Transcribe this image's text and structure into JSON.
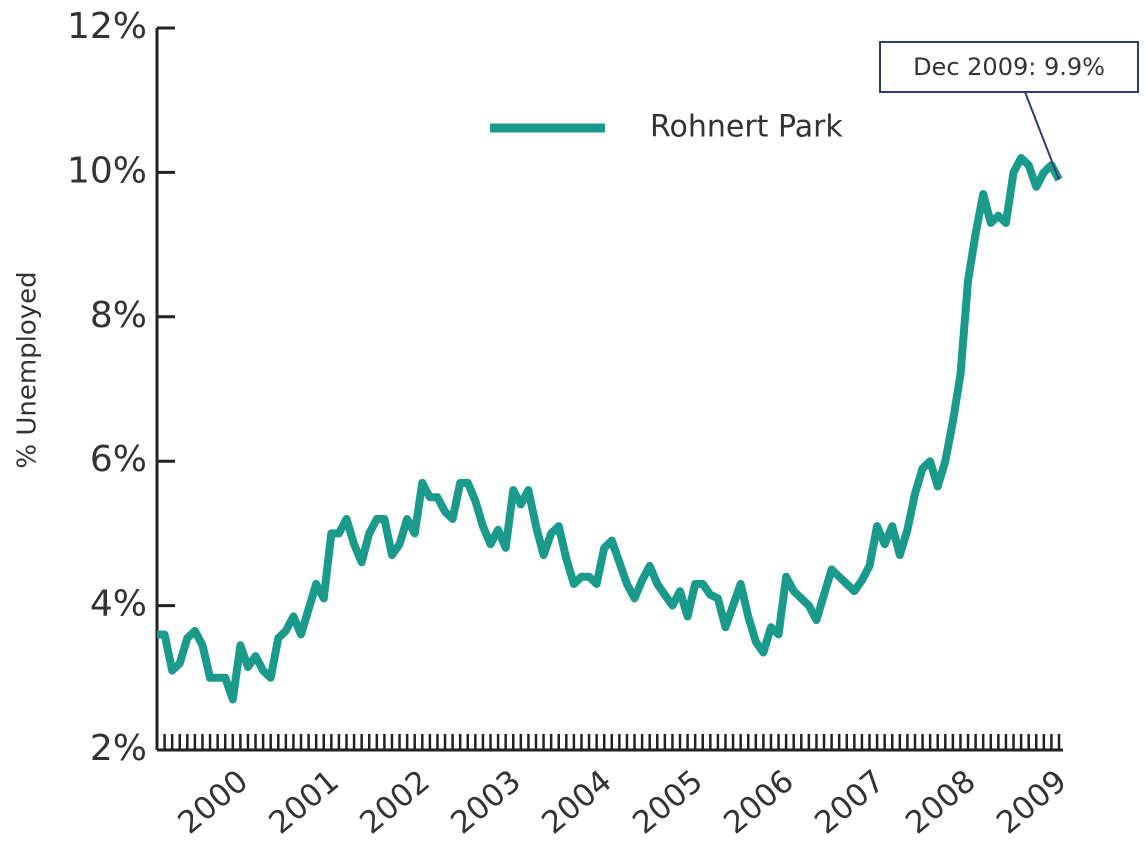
{
  "chart_data": {
    "type": "line",
    "y_label": "% Unemployed",
    "annotation": "Dec 2009: 9.9%",
    "categories": [
      null,
      null,
      null,
      null,
      null,
      null,
      null,
      null,
      null,
      null,
      null,
      "2000",
      null,
      null,
      null,
      null,
      null,
      null,
      null,
      null,
      null,
      null,
      null,
      "2001",
      null,
      null,
      null,
      null,
      null,
      null,
      null,
      null,
      null,
      null,
      null,
      "2002",
      null,
      null,
      null,
      null,
      null,
      null,
      null,
      null,
      null,
      null,
      null,
      "2003",
      null,
      null,
      null,
      null,
      null,
      null,
      null,
      null,
      null,
      null,
      null,
      "2004",
      null,
      null,
      null,
      null,
      null,
      null,
      null,
      null,
      null,
      null,
      null,
      "2005",
      null,
      null,
      null,
      null,
      null,
      null,
      null,
      null,
      null,
      null,
      null,
      "2006",
      null,
      null,
      null,
      null,
      null,
      null,
      null,
      null,
      null,
      null,
      null,
      "2007",
      null,
      null,
      null,
      null,
      null,
      null,
      null,
      null,
      null,
      null,
      null,
      "2008",
      null,
      null,
      null,
      null,
      null,
      null,
      null,
      null,
      null,
      null,
      null,
      "2009"
    ],
    "series": [
      {
        "name": "Rohnert Park",
        "color": "#1a9a8a",
        "values": [
          3.6,
          3.6,
          3.1,
          3.2,
          3.55,
          3.65,
          3.45,
          3.0,
          3.0,
          3.0,
          2.7,
          3.45,
          3.15,
          3.3,
          3.1,
          3.0,
          3.55,
          3.65,
          3.85,
          3.6,
          3.95,
          4.3,
          4.1,
          5.0,
          5.0,
          5.2,
          4.85,
          4.6,
          5.0,
          5.2,
          5.2,
          4.7,
          4.85,
          5.2,
          5.0,
          5.7,
          5.5,
          5.5,
          5.3,
          5.2,
          5.7,
          5.7,
          5.45,
          5.1,
          4.85,
          5.05,
          4.8,
          5.6,
          5.4,
          5.6,
          5.1,
          4.7,
          5.0,
          5.1,
          4.65,
          4.3,
          4.4,
          4.4,
          4.3,
          4.8,
          4.9,
          4.6,
          4.3,
          4.1,
          4.35,
          4.55,
          4.3,
          4.15,
          4.0,
          4.2,
          3.85,
          4.3,
          4.3,
          4.15,
          4.1,
          3.7,
          4.0,
          4.3,
          3.85,
          3.5,
          3.35,
          3.7,
          3.6,
          4.4,
          4.2,
          4.1,
          4.0,
          3.8,
          4.15,
          4.5,
          4.4,
          4.3,
          4.2,
          4.35,
          4.55,
          5.1,
          4.85,
          5.1,
          4.7,
          5.05,
          5.55,
          5.9,
          6.0,
          5.65,
          6.0,
          6.55,
          7.2,
          8.5,
          9.15,
          9.7,
          9.3,
          9.4,
          9.3,
          10.0,
          10.2,
          10.1,
          9.8,
          10.0,
          10.1,
          9.9
        ]
      }
    ],
    "ylim": [
      2,
      12
    ],
    "yticks": [
      {
        "value": 2,
        "label": "2%"
      },
      {
        "value": 4,
        "label": "4%"
      },
      {
        "value": 6,
        "label": "6%"
      },
      {
        "value": 8,
        "label": "8%"
      },
      {
        "value": 10,
        "label": "10%"
      },
      {
        "value": 12,
        "label": "12%"
      }
    ]
  }
}
